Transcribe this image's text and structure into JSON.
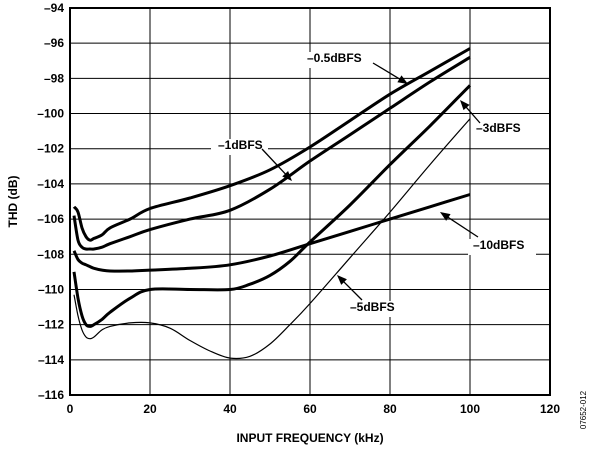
{
  "chart_data": {
    "type": "line",
    "title": "",
    "xlabel": "INPUT FREQUENCY (kHz)",
    "ylabel": "THD (dB)",
    "xlim": [
      0,
      120
    ],
    "ylim": [
      -116,
      -94
    ],
    "xticks": [
      0,
      20,
      40,
      60,
      80,
      100,
      120
    ],
    "yticks": [
      -94,
      -96,
      -98,
      -100,
      -102,
      -104,
      -106,
      -108,
      -110,
      -112,
      -114,
      -116
    ],
    "xtick_labels": [
      "0",
      "20",
      "40",
      "60",
      "80",
      "100",
      "120"
    ],
    "ytick_labels": [
      "–94",
      "–96",
      "–98",
      "–100",
      "–102",
      "–104",
      "–106",
      "–108",
      "–110",
      "–112",
      "–114",
      "–116"
    ],
    "grid": true,
    "figure_id": "07652-012",
    "series": [
      {
        "name": "–0.5dBFS",
        "weight": "bold",
        "x": [
          1,
          2,
          3,
          4,
          5,
          6,
          8,
          10,
          15,
          20,
          30,
          40,
          50,
          60,
          70,
          80,
          90,
          100
        ],
        "y": [
          -105.3,
          -105.6,
          -106.5,
          -107.0,
          -107.2,
          -107.1,
          -106.9,
          -106.5,
          -106.0,
          -105.4,
          -104.8,
          -104.1,
          -103.2,
          -101.9,
          -100.4,
          -98.9,
          -97.6,
          -96.3
        ]
      },
      {
        "name": "–1dBFS",
        "weight": "bold",
        "x": [
          1,
          2,
          3,
          4,
          5,
          6,
          8,
          10,
          15,
          20,
          30,
          40,
          50,
          60,
          70,
          80,
          90,
          100
        ],
        "y": [
          -105.8,
          -107.2,
          -107.6,
          -107.7,
          -107.7,
          -107.7,
          -107.6,
          -107.4,
          -107.0,
          -106.6,
          -106.0,
          -105.5,
          -104.3,
          -102.7,
          -101.2,
          -99.7,
          -98.2,
          -96.8
        ]
      },
      {
        "name": "–3dBFS",
        "weight": "bold",
        "x": [
          1,
          2,
          3,
          4,
          5,
          6,
          8,
          10,
          15,
          20,
          30,
          40,
          45,
          50,
          55,
          60,
          70,
          80,
          90,
          100
        ],
        "y": [
          -109.0,
          -110.5,
          -111.5,
          -112.0,
          -112.1,
          -112.0,
          -111.7,
          -111.3,
          -110.5,
          -110.0,
          -110.0,
          -110.0,
          -109.7,
          -109.2,
          -108.4,
          -107.3,
          -105.2,
          -102.9,
          -100.7,
          -98.4
        ]
      },
      {
        "name": "–5dBFS",
        "weight": "thin",
        "x": [
          1,
          2,
          3,
          4,
          5,
          6,
          8,
          10,
          15,
          20,
          25,
          30,
          35,
          40,
          45,
          50,
          55,
          60,
          70,
          80,
          90,
          100
        ],
        "y": [
          -110.3,
          -111.5,
          -112.3,
          -112.7,
          -112.8,
          -112.7,
          -112.3,
          -112.1,
          -111.9,
          -111.9,
          -112.2,
          -112.9,
          -113.5,
          -113.9,
          -113.8,
          -113.1,
          -112.0,
          -110.8,
          -108.2,
          -105.6,
          -102.9,
          -100.3
        ]
      },
      {
        "name": "–10dBFS",
        "weight": "bold",
        "x": [
          1,
          2,
          3,
          4,
          5,
          6,
          8,
          10,
          15,
          20,
          30,
          40,
          50,
          60,
          70,
          80,
          90,
          100
        ],
        "y": [
          -107.8,
          -108.3,
          -108.5,
          -108.6,
          -108.7,
          -108.8,
          -108.9,
          -108.95,
          -108.95,
          -108.9,
          -108.8,
          -108.6,
          -108.1,
          -107.4,
          -106.7,
          -106.0,
          -105.3,
          -104.6
        ]
      }
    ],
    "annotations": [
      {
        "text": "–0.5dBFS",
        "series": 0
      },
      {
        "text": "–1dBFS",
        "series": 1
      },
      {
        "text": "–3dBFS",
        "series": 2
      },
      {
        "text": "–5dBFS",
        "series": 3
      },
      {
        "text": "–10dBFS",
        "series": 4
      }
    ]
  }
}
